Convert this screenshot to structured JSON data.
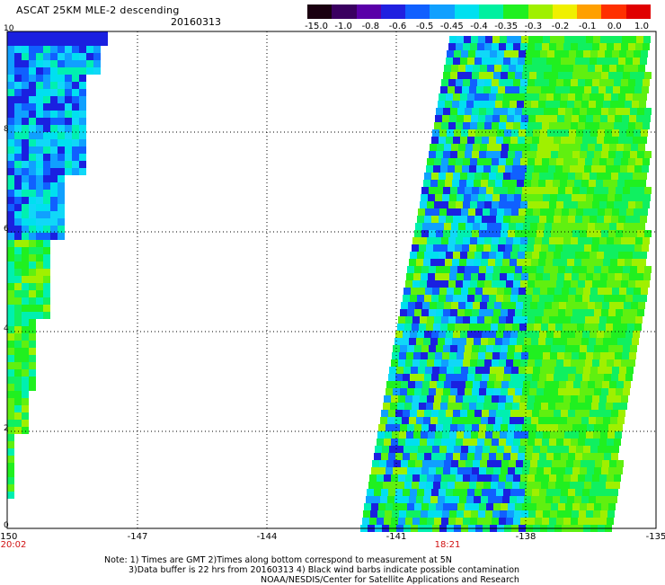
{
  "header": {
    "title": "ASCAT 25KM MLE-2 descending",
    "date": "20160313"
  },
  "colorbar": {
    "labels": [
      "-15.0",
      "-1.0",
      "-0.8",
      "-0.6",
      "-0.5",
      "-0.45",
      "-0.4",
      "-0.35",
      "-0.3",
      "-0.2",
      "-0.1",
      "0.0",
      "1.0"
    ],
    "colors": [
      "#1a0010",
      "#3a0060",
      "#5a00a8",
      "#2020e0",
      "#1060ff",
      "#10a0ff",
      "#00e0f0",
      "#00f0a0",
      "#20f020",
      "#a0f000",
      "#f0f000",
      "#ffa000",
      "#ff3000",
      "#e00000"
    ]
  },
  "axes": {
    "y_ticks": [
      "10",
      "8",
      "6",
      "4",
      "2",
      "0"
    ],
    "x_ticks": [
      "-150",
      "-147",
      "-144",
      "-141",
      "-138",
      "-135"
    ]
  },
  "times": [
    {
      "label": "20:02"
    },
    {
      "label": "18:21"
    }
  ],
  "notes": [
    "Note: 1) Times are GMT 2)Times along bottom correspond to measurement at 5N",
    "3)Data buffer is 22 hrs from 20160313 4) Black wind barbs indicate possible contamination",
    "NOAA/NESDIS/Center for Satellite Applications and Research"
  ]
}
